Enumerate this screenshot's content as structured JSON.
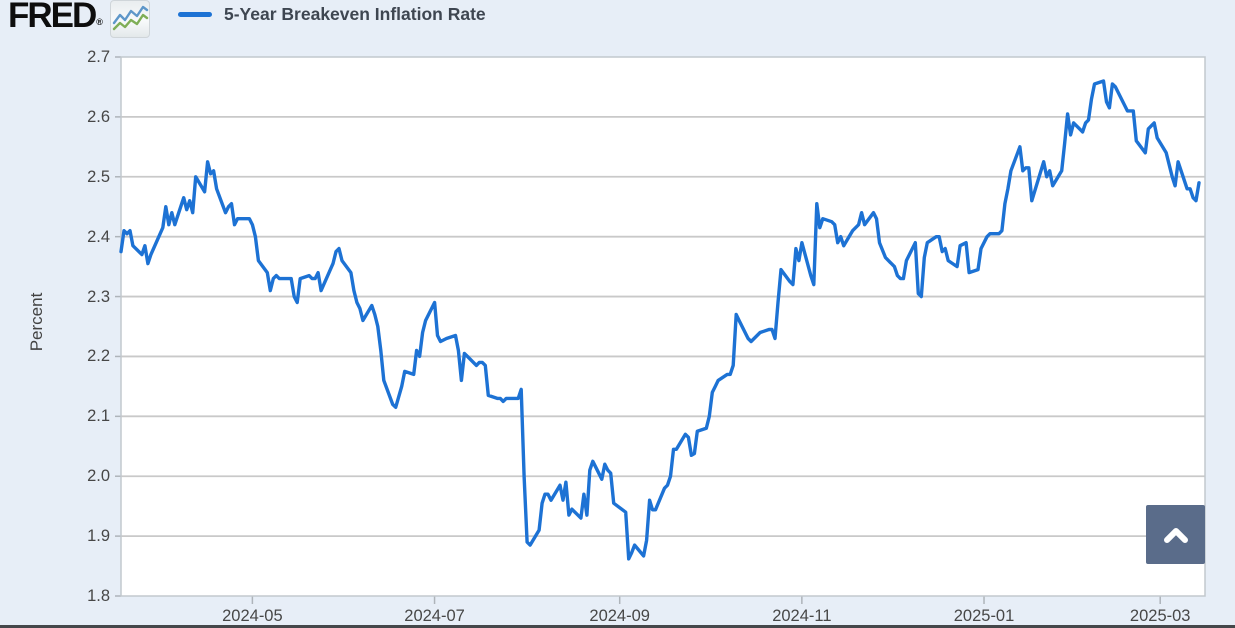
{
  "page": {
    "background": "#e7eef7",
    "bottom_bar_color": "#44474a"
  },
  "header": {
    "logo": {
      "text": "FRED",
      "registered_mark": "®",
      "icon": "sparkline-chart-icon"
    },
    "legend": {
      "swatch_color": "#1d72d4",
      "label": "5-Year Breakeven Inflation Rate"
    }
  },
  "scroll_top_button": {
    "color": "#5a6c8a",
    "icon": "chevron-up-icon"
  },
  "chart_data": {
    "type": "line",
    "title": "5-Year Breakeven Inflation Rate",
    "xlabel": "",
    "ylabel": "Percent",
    "ylim": [
      1.8,
      2.7
    ],
    "ytick_step": 0.1,
    "yticks": [
      "2.7",
      "2.6",
      "2.5",
      "2.4",
      "2.3",
      "2.2",
      "2.1",
      "2.0",
      "1.9",
      "1.8"
    ],
    "xticks": [
      {
        "label": "2024-05",
        "date": "2024-05-01"
      },
      {
        "label": "2024-07",
        "date": "2024-07-01"
      },
      {
        "label": "2024-09",
        "date": "2024-09-01"
      },
      {
        "label": "2024-11",
        "date": "2024-11-01"
      },
      {
        "label": "2025-01",
        "date": "2025-01-01"
      },
      {
        "label": "2025-03",
        "date": "2025-03-01"
      }
    ],
    "x_range": [
      "2024-03-18",
      "2025-03-16"
    ],
    "grid": true,
    "legend_position": "top-left",
    "line_color": "#1d72d4",
    "grid_color": "#c9c9c9",
    "plot_bg": "#ffffff",
    "series": [
      {
        "name": "5-Year Breakeven Inflation Rate",
        "points": [
          [
            "2024-03-18",
            2.375
          ],
          [
            "2024-03-19",
            2.41
          ],
          [
            "2024-03-20",
            2.405
          ],
          [
            "2024-03-21",
            2.41
          ],
          [
            "2024-03-22",
            2.385
          ],
          [
            "2024-03-25",
            2.37
          ],
          [
            "2024-03-26",
            2.385
          ],
          [
            "2024-03-27",
            2.355
          ],
          [
            "2024-03-28",
            2.37
          ],
          [
            "2024-04-01",
            2.415
          ],
          [
            "2024-04-02",
            2.45
          ],
          [
            "2024-04-03",
            2.42
          ],
          [
            "2024-04-04",
            2.44
          ],
          [
            "2024-04-05",
            2.42
          ],
          [
            "2024-04-08",
            2.465
          ],
          [
            "2024-04-09",
            2.445
          ],
          [
            "2024-04-10",
            2.46
          ],
          [
            "2024-04-11",
            2.44
          ],
          [
            "2024-04-12",
            2.5
          ],
          [
            "2024-04-15",
            2.475
          ],
          [
            "2024-04-16",
            2.525
          ],
          [
            "2024-04-17",
            2.505
          ],
          [
            "2024-04-18",
            2.51
          ],
          [
            "2024-04-19",
            2.48
          ],
          [
            "2024-04-22",
            2.44
          ],
          [
            "2024-04-23",
            2.45
          ],
          [
            "2024-04-24",
            2.455
          ],
          [
            "2024-04-25",
            2.42
          ],
          [
            "2024-04-26",
            2.43
          ],
          [
            "2024-04-29",
            2.43
          ],
          [
            "2024-04-30",
            2.43
          ],
          [
            "2024-05-01",
            2.42
          ],
          [
            "2024-05-02",
            2.4
          ],
          [
            "2024-05-03",
            2.36
          ],
          [
            "2024-05-06",
            2.34
          ],
          [
            "2024-05-07",
            2.31
          ],
          [
            "2024-05-08",
            2.33
          ],
          [
            "2024-05-09",
            2.335
          ],
          [
            "2024-05-10",
            2.33
          ],
          [
            "2024-05-13",
            2.33
          ],
          [
            "2024-05-14",
            2.33
          ],
          [
            "2024-05-15",
            2.3
          ],
          [
            "2024-05-16",
            2.29
          ],
          [
            "2024-05-17",
            2.33
          ],
          [
            "2024-05-20",
            2.335
          ],
          [
            "2024-05-21",
            2.33
          ],
          [
            "2024-05-22",
            2.33
          ],
          [
            "2024-05-23",
            2.34
          ],
          [
            "2024-05-24",
            2.31
          ],
          [
            "2024-05-28",
            2.355
          ],
          [
            "2024-05-29",
            2.375
          ],
          [
            "2024-05-30",
            2.38
          ],
          [
            "2024-05-31",
            2.36
          ],
          [
            "2024-06-03",
            2.34
          ],
          [
            "2024-06-04",
            2.31
          ],
          [
            "2024-06-05",
            2.29
          ],
          [
            "2024-06-06",
            2.28
          ],
          [
            "2024-06-07",
            2.26
          ],
          [
            "2024-06-10",
            2.285
          ],
          [
            "2024-06-11",
            2.27
          ],
          [
            "2024-06-12",
            2.25
          ],
          [
            "2024-06-13",
            2.21
          ],
          [
            "2024-06-14",
            2.16
          ],
          [
            "2024-06-17",
            2.12
          ],
          [
            "2024-06-18",
            2.115
          ],
          [
            "2024-06-20",
            2.15
          ],
          [
            "2024-06-21",
            2.175
          ],
          [
            "2024-06-24",
            2.17
          ],
          [
            "2024-06-25",
            2.21
          ],
          [
            "2024-06-26",
            2.2
          ],
          [
            "2024-06-27",
            2.24
          ],
          [
            "2024-06-28",
            2.26
          ],
          [
            "2024-07-01",
            2.29
          ],
          [
            "2024-07-02",
            2.235
          ],
          [
            "2024-07-03",
            2.225
          ],
          [
            "2024-07-05",
            2.23
          ],
          [
            "2024-07-08",
            2.235
          ],
          [
            "2024-07-09",
            2.21
          ],
          [
            "2024-07-10",
            2.16
          ],
          [
            "2024-07-11",
            2.205
          ],
          [
            "2024-07-12",
            2.2
          ],
          [
            "2024-07-15",
            2.185
          ],
          [
            "2024-07-16",
            2.19
          ],
          [
            "2024-07-17",
            2.19
          ],
          [
            "2024-07-18",
            2.185
          ],
          [
            "2024-07-19",
            2.135
          ],
          [
            "2024-07-22",
            2.13
          ],
          [
            "2024-07-23",
            2.13
          ],
          [
            "2024-07-24",
            2.125
          ],
          [
            "2024-07-25",
            2.13
          ],
          [
            "2024-07-26",
            2.13
          ],
          [
            "2024-07-29",
            2.13
          ],
          [
            "2024-07-30",
            2.145
          ],
          [
            "2024-07-31",
            2.0
          ],
          [
            "2024-08-01",
            1.89
          ],
          [
            "2024-08-02",
            1.885
          ],
          [
            "2024-08-05",
            1.91
          ],
          [
            "2024-08-06",
            1.955
          ],
          [
            "2024-08-07",
            1.97
          ],
          [
            "2024-08-08",
            1.97
          ],
          [
            "2024-08-09",
            1.96
          ],
          [
            "2024-08-12",
            1.985
          ],
          [
            "2024-08-13",
            1.96
          ],
          [
            "2024-08-14",
            1.99
          ],
          [
            "2024-08-15",
            1.935
          ],
          [
            "2024-08-16",
            1.945
          ],
          [
            "2024-08-19",
            1.93
          ],
          [
            "2024-08-20",
            1.97
          ],
          [
            "2024-08-21",
            1.935
          ],
          [
            "2024-08-22",
            2.01
          ],
          [
            "2024-08-23",
            2.025
          ],
          [
            "2024-08-26",
            1.995
          ],
          [
            "2024-08-27",
            2.02
          ],
          [
            "2024-08-28",
            2.01
          ],
          [
            "2024-08-29",
            2.005
          ],
          [
            "2024-08-30",
            1.955
          ],
          [
            "2024-09-03",
            1.94
          ],
          [
            "2024-09-04",
            1.862
          ],
          [
            "2024-09-05",
            1.872
          ],
          [
            "2024-09-06",
            1.885
          ],
          [
            "2024-09-09",
            1.867
          ],
          [
            "2024-09-10",
            1.893
          ],
          [
            "2024-09-11",
            1.96
          ],
          [
            "2024-09-12",
            1.944
          ],
          [
            "2024-09-13",
            1.944
          ],
          [
            "2024-09-16",
            1.98
          ],
          [
            "2024-09-17",
            1.985
          ],
          [
            "2024-09-18",
            2.0
          ],
          [
            "2024-09-19",
            2.045
          ],
          [
            "2024-09-20",
            2.045
          ],
          [
            "2024-09-23",
            2.07
          ],
          [
            "2024-09-24",
            2.065
          ],
          [
            "2024-09-25",
            2.035
          ],
          [
            "2024-09-26",
            2.038
          ],
          [
            "2024-09-27",
            2.075
          ],
          [
            "2024-09-30",
            2.08
          ],
          [
            "2024-10-01",
            2.1
          ],
          [
            "2024-10-02",
            2.14
          ],
          [
            "2024-10-03",
            2.15
          ],
          [
            "2024-10-04",
            2.16
          ],
          [
            "2024-10-07",
            2.17
          ],
          [
            "2024-10-08",
            2.17
          ],
          [
            "2024-10-09",
            2.185
          ],
          [
            "2024-10-10",
            2.27
          ],
          [
            "2024-10-11",
            2.26
          ],
          [
            "2024-10-14",
            2.23
          ],
          [
            "2024-10-15",
            2.225
          ],
          [
            "2024-10-16",
            2.23
          ],
          [
            "2024-10-17",
            2.235
          ],
          [
            "2024-10-18",
            2.24
          ],
          [
            "2024-10-21",
            2.245
          ],
          [
            "2024-10-22",
            2.245
          ],
          [
            "2024-10-23",
            2.23
          ],
          [
            "2024-10-24",
            2.29
          ],
          [
            "2024-10-25",
            2.345
          ],
          [
            "2024-10-28",
            2.325
          ],
          [
            "2024-10-29",
            2.32
          ],
          [
            "2024-10-30",
            2.38
          ],
          [
            "2024-10-31",
            2.36
          ],
          [
            "2024-11-01",
            2.39
          ],
          [
            "2024-11-04",
            2.335
          ],
          [
            "2024-11-05",
            2.32
          ],
          [
            "2024-11-06",
            2.455
          ],
          [
            "2024-11-07",
            2.415
          ],
          [
            "2024-11-08",
            2.43
          ],
          [
            "2024-11-11",
            2.425
          ],
          [
            "2024-11-12",
            2.42
          ],
          [
            "2024-11-13",
            2.39
          ],
          [
            "2024-11-14",
            2.4
          ],
          [
            "2024-11-15",
            2.385
          ],
          [
            "2024-11-18",
            2.41
          ],
          [
            "2024-11-19",
            2.415
          ],
          [
            "2024-11-20",
            2.42
          ],
          [
            "2024-11-21",
            2.44
          ],
          [
            "2024-11-22",
            2.42
          ],
          [
            "2024-11-25",
            2.44
          ],
          [
            "2024-11-26",
            2.43
          ],
          [
            "2024-11-27",
            2.39
          ],
          [
            "2024-11-29",
            2.365
          ],
          [
            "2024-12-02",
            2.35
          ],
          [
            "2024-12-03",
            2.335
          ],
          [
            "2024-12-04",
            2.33
          ],
          [
            "2024-12-05",
            2.33
          ],
          [
            "2024-12-06",
            2.36
          ],
          [
            "2024-12-09",
            2.39
          ],
          [
            "2024-12-10",
            2.305
          ],
          [
            "2024-12-11",
            2.3
          ],
          [
            "2024-12-12",
            2.365
          ],
          [
            "2024-12-13",
            2.39
          ],
          [
            "2024-12-16",
            2.4
          ],
          [
            "2024-12-17",
            2.4
          ],
          [
            "2024-12-18",
            2.375
          ],
          [
            "2024-12-19",
            2.38
          ],
          [
            "2024-12-20",
            2.36
          ],
          [
            "2024-12-23",
            2.35
          ],
          [
            "2024-12-24",
            2.385
          ],
          [
            "2024-12-26",
            2.39
          ],
          [
            "2024-12-27",
            2.34
          ],
          [
            "2024-12-30",
            2.345
          ],
          [
            "2024-12-31",
            2.38
          ],
          [
            "2025-01-02",
            2.4
          ],
          [
            "2025-01-03",
            2.405
          ],
          [
            "2025-01-06",
            2.405
          ],
          [
            "2025-01-07",
            2.41
          ],
          [
            "2025-01-08",
            2.455
          ],
          [
            "2025-01-09",
            2.48
          ],
          [
            "2025-01-10",
            2.51
          ],
          [
            "2025-01-13",
            2.55
          ],
          [
            "2025-01-14",
            2.51
          ],
          [
            "2025-01-15",
            2.515
          ],
          [
            "2025-01-16",
            2.515
          ],
          [
            "2025-01-17",
            2.46
          ],
          [
            "2025-01-21",
            2.525
          ],
          [
            "2025-01-22",
            2.5
          ],
          [
            "2025-01-23",
            2.51
          ],
          [
            "2025-01-24",
            2.485
          ],
          [
            "2025-01-27",
            2.51
          ],
          [
            "2025-01-28",
            2.555
          ],
          [
            "2025-01-29",
            2.605
          ],
          [
            "2025-01-30",
            2.57
          ],
          [
            "2025-01-31",
            2.59
          ],
          [
            "2025-02-03",
            2.575
          ],
          [
            "2025-02-04",
            2.59
          ],
          [
            "2025-02-05",
            2.595
          ],
          [
            "2025-02-06",
            2.63
          ],
          [
            "2025-02-07",
            2.655
          ],
          [
            "2025-02-10",
            2.66
          ],
          [
            "2025-02-11",
            2.625
          ],
          [
            "2025-02-12",
            2.615
          ],
          [
            "2025-02-13",
            2.655
          ],
          [
            "2025-02-14",
            2.65
          ],
          [
            "2025-02-18",
            2.61
          ],
          [
            "2025-02-19",
            2.61
          ],
          [
            "2025-02-20",
            2.61
          ],
          [
            "2025-02-21",
            2.56
          ],
          [
            "2025-02-24",
            2.54
          ],
          [
            "2025-02-25",
            2.58
          ],
          [
            "2025-02-26",
            2.585
          ],
          [
            "2025-02-27",
            2.59
          ],
          [
            "2025-02-28",
            2.565
          ],
          [
            "2025-03-03",
            2.54
          ],
          [
            "2025-03-04",
            2.52
          ],
          [
            "2025-03-05",
            2.5
          ],
          [
            "2025-03-06",
            2.485
          ],
          [
            "2025-03-07",
            2.525
          ],
          [
            "2025-03-10",
            2.48
          ],
          [
            "2025-03-11",
            2.48
          ],
          [
            "2025-03-12",
            2.465
          ],
          [
            "2025-03-13",
            2.46
          ],
          [
            "2025-03-14",
            2.49
          ]
        ]
      }
    ]
  }
}
